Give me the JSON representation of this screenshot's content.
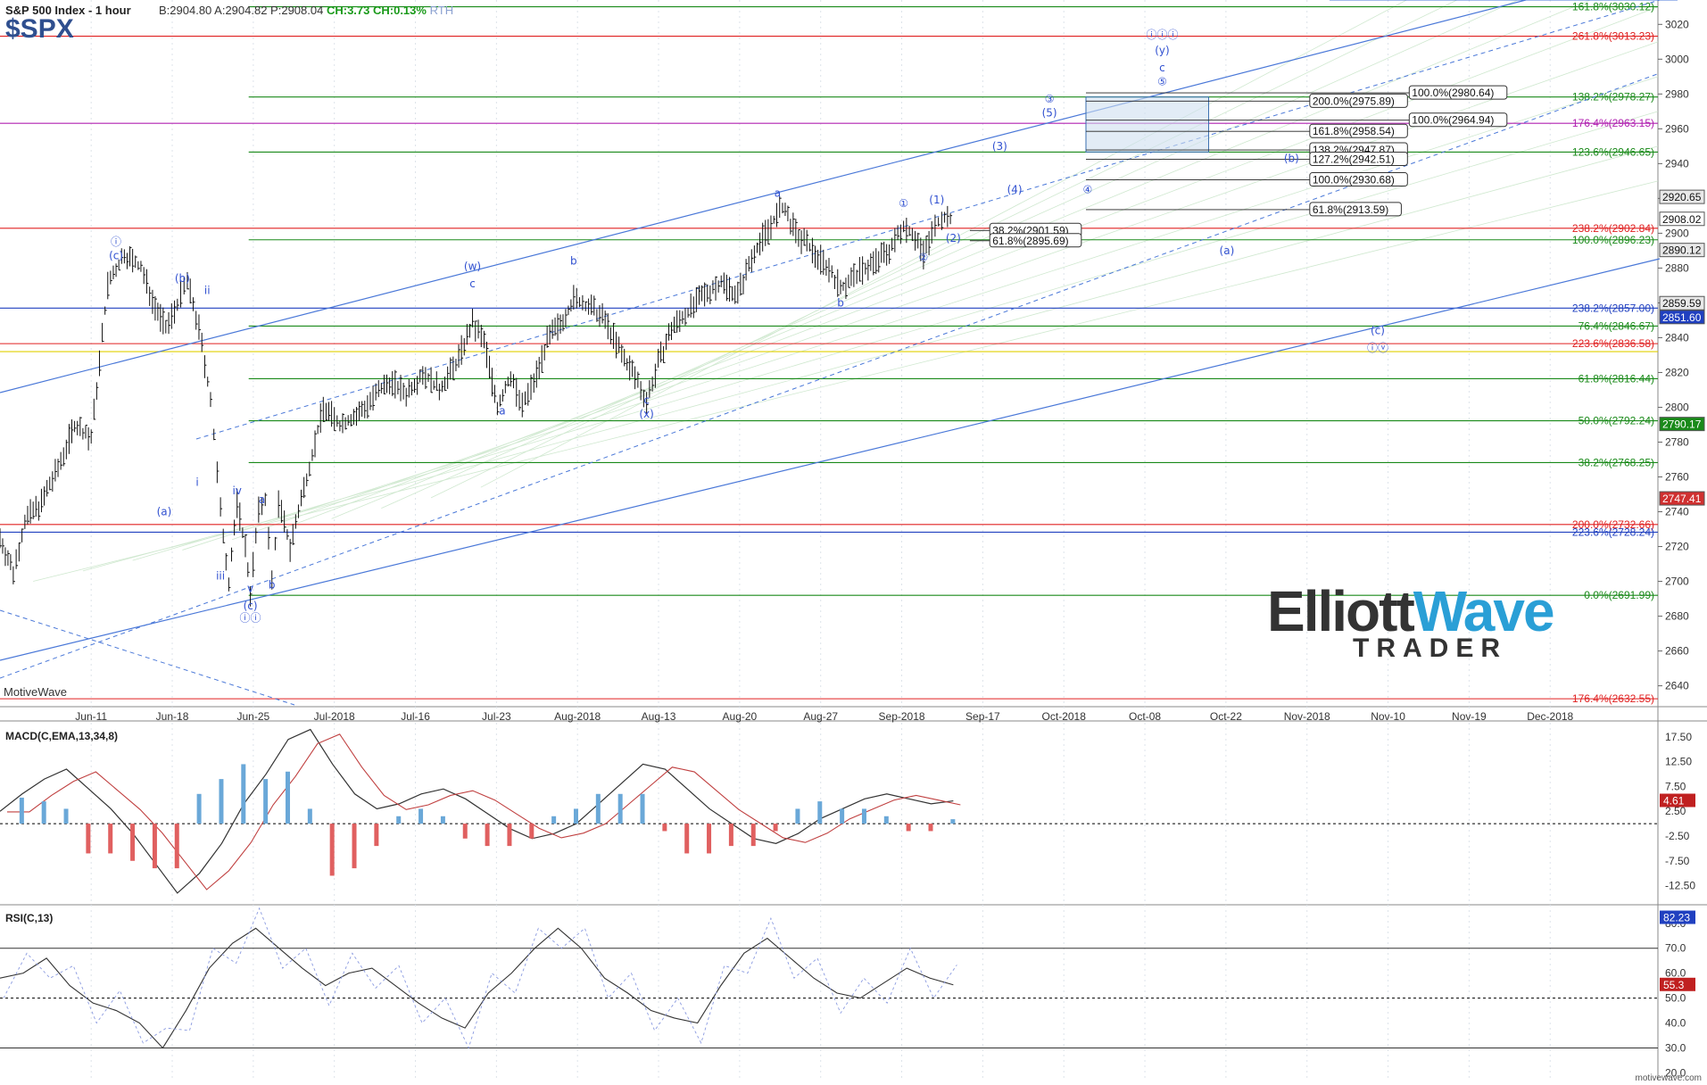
{
  "header": {
    "title": "S&P 500 Index - 1 hour",
    "symbol": "$SPX",
    "bid_ask": "B:2904.80  A:2904.82  P:2908.04",
    "change": "CH:3.73  CH:0.13%",
    "session": "RTH",
    "watermark": "MotiveWave",
    "footer": "motivewave.com"
  },
  "logo": {
    "line1a": "Elliott",
    "line1b": "Wave",
    "line2": "TRADER"
  },
  "colors": {
    "green": "#1a8a1a",
    "red": "#e02020",
    "blue": "#2040c0",
    "magenta": "#b020b0",
    "yellow": "#e0d000",
    "wave_blue": "#3050d0"
  },
  "price_axis": {
    "ticks": [
      3020,
      3000,
      2980,
      2960,
      2940,
      2920,
      2900,
      2880,
      2860,
      2840,
      2820,
      2800,
      2780,
      2760,
      2740,
      2720,
      2700,
      2680,
      2660,
      2640
    ],
    "min": 2628,
    "max": 3034
  },
  "time_axis": {
    "labels": [
      "Jun-11",
      "Jun-18",
      "Jun-25",
      "Jul-2018",
      "Jul-16",
      "Jul-23",
      "Aug-2018",
      "Aug-13",
      "Aug-20",
      "Aug-27",
      "Sep-2018",
      "Sep-17",
      "Oct-2018",
      "Oct-08",
      "Oct-22",
      "Nov-2018",
      "Nov-10",
      "Nov-19",
      "Dec-2018"
    ]
  },
  "price_tags": [
    {
      "label": "2920.65",
      "value": 2920.65,
      "color": "#e8e8e8"
    },
    {
      "label": "2908.02",
      "value": 2908.02,
      "color": "#ffffff"
    },
    {
      "label": "2890.12",
      "value": 2890.12,
      "color": "#e8e8e8"
    },
    {
      "label": "2859.59",
      "value": 2859.59,
      "color": "#e8e8e8"
    },
    {
      "label": "2851.60",
      "value": 2851.6,
      "color": "#2040c0"
    },
    {
      "label": "2790.17",
      "value": 2790.17,
      "color": "#1a8a1a"
    },
    {
      "label": "2747.41",
      "value": 2747.41,
      "color": "#d03030"
    }
  ],
  "fib_lines": [
    {
      "label": "161.8%(3030.12)",
      "value": 3030.12,
      "color": "#1a8a1a"
    },
    {
      "label": "261.8%(3013.23)",
      "value": 3013.23,
      "color": "#e02020"
    },
    {
      "label": "138.2%(2978.27)",
      "value": 2978.27,
      "color": "#1a8a1a"
    },
    {
      "label": "176.4%(2963.15)",
      "value": 2963.15,
      "color": "#b020b0"
    },
    {
      "label": "123.6%(2946.65)",
      "value": 2946.65,
      "color": "#1a8a1a"
    },
    {
      "label": "238.2%(2902.84)",
      "value": 2902.84,
      "color": "#e02020"
    },
    {
      "label": "100.0%(2896.23)",
      "value": 2896.23,
      "color": "#1a8a1a"
    },
    {
      "label": "238.2%(2857.00)",
      "value": 2857.0,
      "color": "#2040c0"
    },
    {
      "label": "76.4%(2846.67)",
      "value": 2846.67,
      "color": "#1a8a1a"
    },
    {
      "label": "223.6%(2836.58)",
      "value": 2836.58,
      "color": "#e02020"
    },
    {
      "label": "",
      "value": 2832.0,
      "color": "#e0d000"
    },
    {
      "label": "61.8%(2816.44)",
      "value": 2816.44,
      "color": "#1a8a1a"
    },
    {
      "label": "50.0%(2792.24)",
      "value": 2792.24,
      "color": "#1a8a1a"
    },
    {
      "label": "38.2%(2768.25)",
      "value": 2768.25,
      "color": "#1a8a1a"
    },
    {
      "label": "200.0%(2732.66)",
      "value": 2732.66,
      "color": "#e02020"
    },
    {
      "label": "223.6%(2728.24)",
      "value": 2728.24,
      "color": "#2040c0"
    },
    {
      "label": "0.0%(2691.99)",
      "value": 2691.99,
      "color": "#1a8a1a"
    },
    {
      "label": "176.4%(2632.55)",
      "value": 2632.55,
      "color": "#e02020"
    }
  ],
  "target_boxes": [
    {
      "label": "100.0%(2980.64)",
      "value": 2980.64
    },
    {
      "label": "200.0%(2975.89)",
      "value": 2975.89
    },
    {
      "label": "100.0%(2964.94)",
      "value": 2964.94
    },
    {
      "label": "161.8%(2958.54)",
      "value": 2958.54
    },
    {
      "label": "138.2%(2947.87)",
      "value": 2947.87
    },
    {
      "label": "127.2%(2942.51)",
      "value": 2942.51
    },
    {
      "label": "100.0%(2930.68)",
      "value": 2930.68
    },
    {
      "label": "61.8%(2913.59)",
      "value": 2913.59
    },
    {
      "label": "38.2%(2901.59)",
      "value": 2901.59
    },
    {
      "label": "61.8%(2895.69)",
      "value": 2895.69
    }
  ],
  "wave_labels": [
    {
      "t": "ⓘ",
      "x": 0.07,
      "v": 2893
    },
    {
      "t": "(c)",
      "x": 0.07,
      "v": 2885
    },
    {
      "t": "(b)",
      "x": 0.11,
      "v": 2872
    },
    {
      "t": "(a)",
      "x": 0.099,
      "v": 2738
    },
    {
      "t": "ii",
      "x": 0.125,
      "v": 2865
    },
    {
      "t": "i",
      "x": 0.119,
      "v": 2755
    },
    {
      "t": "iv",
      "x": 0.143,
      "v": 2750
    },
    {
      "t": "a",
      "x": 0.158,
      "v": 2745
    },
    {
      "t": "iii",
      "x": 0.133,
      "v": 2701
    },
    {
      "t": "v",
      "x": 0.151,
      "v": 2694
    },
    {
      "t": "b",
      "x": 0.164,
      "v": 2696
    },
    {
      "t": "(c)",
      "x": 0.151,
      "v": 2684
    },
    {
      "t": "ⓘⓘ",
      "x": 0.151,
      "v": 2677
    },
    {
      "t": "(w)",
      "x": 0.285,
      "v": 2879
    },
    {
      "t": "c",
      "x": 0.285,
      "v": 2869
    },
    {
      "t": "a",
      "x": 0.303,
      "v": 2796
    },
    {
      "t": "b",
      "x": 0.346,
      "v": 2882
    },
    {
      "t": "c",
      "x": 0.39,
      "v": 2802
    },
    {
      "t": "(x)",
      "x": 0.39,
      "v": 2794
    },
    {
      "t": "a",
      "x": 0.469,
      "v": 2921
    },
    {
      "t": "b",
      "x": 0.507,
      "v": 2858
    },
    {
      "t": "①",
      "x": 0.545,
      "v": 2915
    },
    {
      "t": "(1)",
      "x": 0.565,
      "v": 2917
    },
    {
      "t": "(2)",
      "x": 0.575,
      "v": 2895
    },
    {
      "t": "②",
      "x": 0.557,
      "v": 2884
    },
    {
      "t": "(3)",
      "x": 0.603,
      "v": 2948
    },
    {
      "t": "(4)",
      "x": 0.612,
      "v": 2923
    },
    {
      "t": "④",
      "x": 0.656,
      "v": 2923
    },
    {
      "t": "③",
      "x": 0.633,
      "v": 2975
    },
    {
      "t": "(5)",
      "x": 0.633,
      "v": 2967
    },
    {
      "t": "ⓘⓘⓘ",
      "x": 0.701,
      "v": 3012
    },
    {
      "t": "(y)",
      "x": 0.701,
      "v": 3003
    },
    {
      "t": "c",
      "x": 0.701,
      "v": 2993
    },
    {
      "t": "⑤",
      "x": 0.701,
      "v": 2985
    },
    {
      "t": "(b)",
      "x": 0.779,
      "v": 2941
    },
    {
      "t": "(a)",
      "x": 0.74,
      "v": 2888
    },
    {
      "t": "(c)",
      "x": 0.831,
      "v": 2842
    },
    {
      "t": "ⓘⓥ",
      "x": 0.831,
      "v": 2832
    }
  ],
  "macd": {
    "title": "MACD(C,EMA,13,34,8)",
    "ticks": [
      17.5,
      12.5,
      7.5,
      2.5,
      -2.5,
      -7.5,
      -12.5
    ],
    "min": -16,
    "max": 20,
    "last_value": "4.61"
  },
  "rsi": {
    "title": "RSI(C,13)",
    "ticks": [
      80.0,
      70.0,
      60.0,
      50.0,
      40.0,
      30.0,
      20.0
    ],
    "min": 18,
    "max": 86,
    "last_value": "82.23",
    "current": "55.3"
  },
  "chart_data": {
    "type": "ohlc",
    "title": "S&P 500 Index - 1 hour",
    "interval": "1 hour",
    "ylim": [
      2628,
      3034
    ],
    "price_path": [
      [
        0.0,
        2725
      ],
      [
        0.008,
        2705
      ],
      [
        0.015,
        2735
      ],
      [
        0.025,
        2745
      ],
      [
        0.035,
        2765
      ],
      [
        0.045,
        2790
      ],
      [
        0.055,
        2782
      ],
      [
        0.065,
        2870
      ],
      [
        0.075,
        2888
      ],
      [
        0.085,
        2880
      ],
      [
        0.092,
        2862
      ],
      [
        0.1,
        2845
      ],
      [
        0.107,
        2860
      ],
      [
        0.113,
        2872
      ],
      [
        0.12,
        2845
      ],
      [
        0.127,
        2805
      ],
      [
        0.133,
        2740
      ],
      [
        0.138,
        2700
      ],
      [
        0.143,
        2745
      ],
      [
        0.148,
        2720
      ],
      [
        0.151,
        2694
      ],
      [
        0.156,
        2740
      ],
      [
        0.16,
        2748
      ],
      [
        0.164,
        2700
      ],
      [
        0.168,
        2745
      ],
      [
        0.175,
        2720
      ],
      [
        0.185,
        2760
      ],
      [
        0.195,
        2800
      ],
      [
        0.205,
        2790
      ],
      [
        0.215,
        2795
      ],
      [
        0.225,
        2805
      ],
      [
        0.235,
        2815
      ],
      [
        0.245,
        2808
      ],
      [
        0.255,
        2820
      ],
      [
        0.265,
        2810
      ],
      [
        0.275,
        2825
      ],
      [
        0.285,
        2848
      ],
      [
        0.292,
        2838
      ],
      [
        0.3,
        2800
      ],
      [
        0.308,
        2818
      ],
      [
        0.315,
        2800
      ],
      [
        0.322,
        2815
      ],
      [
        0.33,
        2838
      ],
      [
        0.338,
        2848
      ],
      [
        0.346,
        2862
      ],
      [
        0.355,
        2858
      ],
      [
        0.365,
        2850
      ],
      [
        0.375,
        2830
      ],
      [
        0.383,
        2818
      ],
      [
        0.39,
        2804
      ],
      [
        0.397,
        2825
      ],
      [
        0.405,
        2845
      ],
      [
        0.415,
        2855
      ],
      [
        0.425,
        2865
      ],
      [
        0.435,
        2872
      ],
      [
        0.445,
        2865
      ],
      [
        0.455,
        2890
      ],
      [
        0.465,
        2905
      ],
      [
        0.472,
        2915
      ],
      [
        0.48,
        2900
      ],
      [
        0.49,
        2890
      ],
      [
        0.5,
        2880
      ],
      [
        0.507,
        2868
      ],
      [
        0.515,
        2875
      ],
      [
        0.522,
        2880
      ],
      [
        0.53,
        2885
      ],
      [
        0.538,
        2892
      ],
      [
        0.545,
        2905
      ],
      [
        0.552,
        2898
      ],
      [
        0.557,
        2888
      ],
      [
        0.562,
        2900
      ],
      [
        0.568,
        2910
      ],
      [
        0.575,
        2908
      ]
    ],
    "series": [
      {
        "name": "MACD(C,EMA,13,34,8)",
        "values": [
          2.5,
          6,
          9,
          11,
          7,
          3,
          -2,
          -8,
          -14,
          -10,
          -4,
          4,
          10,
          17,
          19,
          12,
          6,
          3,
          4,
          6,
          7,
          5,
          2,
          -1,
          -3,
          -2,
          0,
          4,
          8,
          12,
          11,
          7,
          3,
          0,
          -3,
          -4,
          -2,
          1,
          3,
          5,
          6,
          5,
          4,
          4.6
        ]
      },
      {
        "name": "RSI(C,13)",
        "values": [
          58,
          60,
          66,
          55,
          48,
          45,
          40,
          30,
          45,
          62,
          72,
          78,
          70,
          62,
          55,
          60,
          62,
          55,
          48,
          42,
          38,
          52,
          60,
          70,
          78,
          70,
          58,
          52,
          45,
          42,
          40,
          55,
          68,
          74,
          66,
          58,
          52,
          50,
          56,
          62,
          58,
          55.3
        ]
      }
    ]
  }
}
